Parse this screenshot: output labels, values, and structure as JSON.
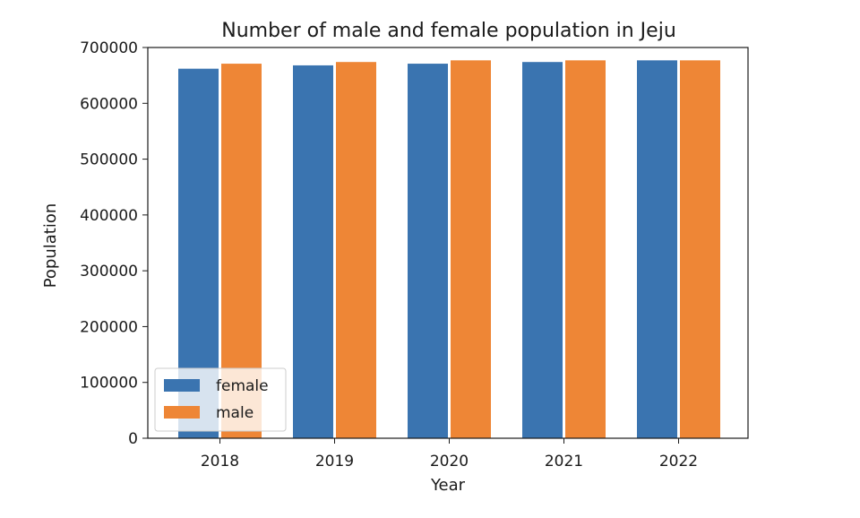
{
  "chart_data": {
    "type": "bar",
    "title": "Number of male and female population in Jeju",
    "xlabel": "Year",
    "ylabel": "Population",
    "categories": [
      "2018",
      "2019",
      "2020",
      "2021",
      "2022"
    ],
    "series": [
      {
        "name": "female",
        "color": "#3a74b0",
        "values": [
          662000,
          668000,
          671000,
          674000,
          677000
        ]
      },
      {
        "name": "male",
        "color": "#ee8636",
        "values": [
          671000,
          674000,
          677000,
          677000,
          677000
        ]
      }
    ],
    "ylim": [
      0,
      700000
    ],
    "yticks": [
      "0",
      "100000",
      "200000",
      "300000",
      "400000",
      "500000",
      "600000",
      "700000"
    ],
    "ytick_values": [
      0,
      100000,
      200000,
      300000,
      400000,
      500000,
      600000,
      700000
    ],
    "grid": false,
    "legend_position": "lower-left"
  }
}
